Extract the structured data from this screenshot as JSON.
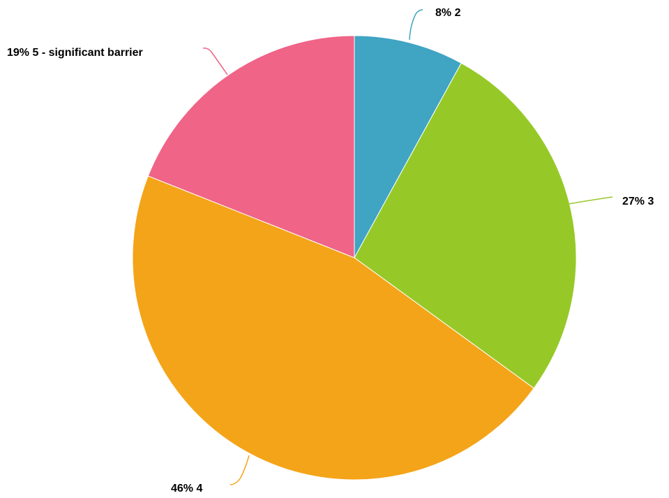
{
  "chart_data": {
    "type": "pie",
    "start": "12 o'clock",
    "direction": "clockwise",
    "slices": [
      {
        "name": "2",
        "value": 8,
        "percent_label": "8%",
        "label": "8% 2",
        "color": "#40A4C3"
      },
      {
        "name": "3",
        "value": 27,
        "percent_label": "27%",
        "label": "27% 3",
        "color": "#96C928"
      },
      {
        "name": "4",
        "value": 46,
        "percent_label": "46%",
        "label": "46% 4",
        "color": "#F4A418"
      },
      {
        "name": "5 - significant barrier",
        "value": 19,
        "percent_label": "19%",
        "label": "19% 5 - significant barrier",
        "color": "#EF6487"
      }
    ]
  }
}
